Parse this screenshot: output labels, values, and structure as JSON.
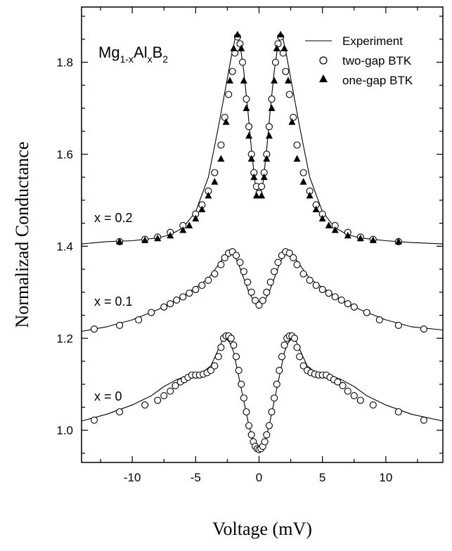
{
  "chart_data": {
    "type": "line",
    "title": "",
    "formula": {
      "main1": "Mg",
      "sub1": "1-x",
      "main2": "Al",
      "sub2": "x",
      "main3": "B",
      "sub3": "2"
    },
    "xlabel": "Voltage (mV)",
    "ylabel": "Normalizad Conductance",
    "xlim": [
      -14,
      14.5
    ],
    "ylim": [
      0.93,
      1.92
    ],
    "x_ticks": [
      -10,
      -5,
      0,
      5,
      10
    ],
    "y_ticks": [
      1.0,
      1.2,
      1.4,
      1.6,
      1.8
    ],
    "y_tick_labels": [
      "1.0",
      "1.2",
      "1.4",
      "1.6",
      "1.8"
    ],
    "grid": false,
    "legend_position": "top-right",
    "legend": [
      {
        "key": "line",
        "label": "Experiment"
      },
      {
        "key": "circle",
        "label": "two-gap BTK"
      },
      {
        "key": "triangle",
        "label": "one-gap BTK"
      }
    ],
    "series_labels": [
      {
        "text": "x = 0.2",
        "x": -11.5,
        "y": 1.42
      },
      {
        "text": "x = 0.1",
        "x": -11.5,
        "y": 1.237
      },
      {
        "text": "x = 0",
        "x": -11.5,
        "y": 1.07
      }
    ],
    "series": [
      {
        "name": "x = 0.2",
        "role": "experiment",
        "x": [
          -14,
          -12,
          -10,
          -8,
          -7,
          -6,
          -5,
          -4,
          -3.2,
          -2.6,
          -2.2,
          -1.9,
          -1.7,
          -1.5,
          -1.2,
          -0.9,
          -0.6,
          -0.3,
          0,
          0.3,
          0.6,
          0.9,
          1.2,
          1.5,
          1.7,
          1.9,
          2.2,
          2.6,
          3.2,
          4,
          5,
          6,
          7,
          8,
          10,
          12,
          14.5
        ],
        "y": [
          1.405,
          1.41,
          1.412,
          1.418,
          1.425,
          1.44,
          1.475,
          1.55,
          1.66,
          1.75,
          1.81,
          1.85,
          1.855,
          1.84,
          1.78,
          1.7,
          1.61,
          1.535,
          1.505,
          1.535,
          1.61,
          1.7,
          1.78,
          1.84,
          1.855,
          1.85,
          1.81,
          1.75,
          1.66,
          1.55,
          1.475,
          1.44,
          1.425,
          1.418,
          1.412,
          1.408,
          1.405
        ]
      },
      {
        "name": "x = 0.2",
        "role": "two-gap BTK",
        "x": [
          -11,
          -9,
          -8,
          -7,
          -6,
          -5,
          -4.5,
          -4,
          -3.5,
          -3,
          -2.7,
          -2.4,
          -2.1,
          -1.9,
          -1.7,
          -1.5,
          -1.3,
          -1.0,
          -0.8,
          -0.6,
          -0.4,
          -0.2,
          0,
          0.2,
          0.4,
          0.6,
          0.8,
          1.0,
          1.3,
          1.5,
          1.7,
          1.9,
          2.1,
          2.4,
          2.7,
          3,
          3.5,
          4,
          4.5,
          5,
          6,
          7,
          8,
          9,
          11
        ],
        "y": [
          1.41,
          1.415,
          1.42,
          1.43,
          1.445,
          1.47,
          1.49,
          1.52,
          1.56,
          1.62,
          1.68,
          1.73,
          1.78,
          1.82,
          1.855,
          1.84,
          1.8,
          1.72,
          1.66,
          1.6,
          1.56,
          1.53,
          1.515,
          1.53,
          1.56,
          1.6,
          1.66,
          1.72,
          1.8,
          1.84,
          1.855,
          1.82,
          1.78,
          1.73,
          1.68,
          1.62,
          1.56,
          1.52,
          1.49,
          1.47,
          1.445,
          1.43,
          1.42,
          1.415,
          1.41
        ]
      },
      {
        "name": "x = 0.2",
        "role": "one-gap BTK",
        "x": [
          -11,
          -9,
          -8,
          -7,
          -6,
          -5.5,
          -5,
          -4.5,
          -4,
          -3.5,
          -3,
          -2.6,
          -2.3,
          -2.0,
          -1.7,
          -1.4,
          -1.2,
          -1.0,
          -0.8,
          -0.6,
          -0.4,
          -0.2,
          0.2,
          0.4,
          0.6,
          0.8,
          1.0,
          1.2,
          1.4,
          1.7,
          2.0,
          2.3,
          2.6,
          3,
          3.5,
          4,
          4.5,
          5,
          5.5,
          6,
          7,
          8,
          9,
          11
        ],
        "y": [
          1.41,
          1.413,
          1.417,
          1.423,
          1.435,
          1.445,
          1.46,
          1.48,
          1.51,
          1.54,
          1.59,
          1.67,
          1.76,
          1.83,
          1.86,
          1.83,
          1.76,
          1.7,
          1.64,
          1.59,
          1.55,
          1.51,
          1.51,
          1.55,
          1.59,
          1.64,
          1.7,
          1.76,
          1.83,
          1.86,
          1.83,
          1.76,
          1.67,
          1.59,
          1.54,
          1.51,
          1.48,
          1.46,
          1.445,
          1.435,
          1.423,
          1.417,
          1.413,
          1.41
        ]
      },
      {
        "name": "x = 0.1",
        "role": "experiment",
        "x": [
          -14,
          -12,
          -10,
          -8,
          -7,
          -6,
          -5,
          -4,
          -3.2,
          -2.7,
          -2.3,
          -2.0,
          -1.6,
          -1.2,
          -0.8,
          -0.4,
          0,
          0.4,
          0.8,
          1.2,
          1.6,
          2.0,
          2.3,
          2.7,
          3.2,
          4,
          5,
          6,
          7,
          8,
          10,
          12,
          14.5
        ],
        "y": [
          1.215,
          1.225,
          1.24,
          1.262,
          1.276,
          1.292,
          1.31,
          1.33,
          1.36,
          1.38,
          1.39,
          1.385,
          1.36,
          1.33,
          1.3,
          1.28,
          1.27,
          1.28,
          1.3,
          1.33,
          1.36,
          1.385,
          1.39,
          1.38,
          1.36,
          1.33,
          1.31,
          1.292,
          1.276,
          1.262,
          1.24,
          1.225,
          1.218
        ]
      },
      {
        "name": "x = 0.1",
        "role": "two-gap BTK",
        "x": [
          -13,
          -11,
          -9.5,
          -8.5,
          -7.5,
          -7,
          -6.5,
          -6,
          -5.5,
          -5,
          -4.5,
          -4,
          -3.5,
          -3,
          -2.7,
          -2.4,
          -2.1,
          -1.8,
          -1.5,
          -1.2,
          -0.9,
          -0.6,
          -0.3,
          0,
          0.3,
          0.6,
          0.9,
          1.2,
          1.5,
          1.8,
          2.1,
          2.4,
          2.7,
          3,
          3.5,
          4,
          4.5,
          5,
          5.5,
          6,
          6.5,
          7,
          7.5,
          8.5,
          9.5,
          11,
          13
        ],
        "y": [
          1.22,
          1.228,
          1.24,
          1.256,
          1.268,
          1.275,
          1.283,
          1.29,
          1.298,
          1.306,
          1.315,
          1.326,
          1.34,
          1.36,
          1.375,
          1.385,
          1.388,
          1.38,
          1.365,
          1.345,
          1.322,
          1.3,
          1.282,
          1.272,
          1.282,
          1.3,
          1.322,
          1.345,
          1.365,
          1.38,
          1.388,
          1.385,
          1.375,
          1.36,
          1.34,
          1.326,
          1.315,
          1.306,
          1.298,
          1.29,
          1.283,
          1.275,
          1.268,
          1.256,
          1.24,
          1.228,
          1.22
        ]
      },
      {
        "name": "x = 0",
        "role": "experiment",
        "x": [
          -14,
          -12,
          -10,
          -8.5,
          -7.5,
          -6.5,
          -5.5,
          -4.5,
          -3.8,
          -3.3,
          -2.9,
          -2.6,
          -2.3,
          -2.0,
          -1.7,
          -1.4,
          -1.1,
          -0.8,
          -0.5,
          -0.25,
          0,
          0.25,
          0.5,
          0.8,
          1.1,
          1.4,
          1.7,
          2.0,
          2.3,
          2.6,
          2.9,
          3.3,
          3.8,
          4.5,
          5.5,
          6.5,
          7.5,
          8.5,
          10,
          12,
          14.5
        ],
        "y": [
          1.02,
          1.035,
          1.055,
          1.075,
          1.095,
          1.11,
          1.12,
          1.125,
          1.14,
          1.17,
          1.195,
          1.2,
          1.19,
          1.17,
          1.13,
          1.09,
          1.05,
          1.01,
          0.98,
          0.965,
          0.958,
          0.965,
          0.98,
          1.01,
          1.05,
          1.09,
          1.13,
          1.17,
          1.19,
          1.2,
          1.195,
          1.17,
          1.14,
          1.125,
          1.12,
          1.11,
          1.095,
          1.075,
          1.055,
          1.035,
          1.02
        ]
      },
      {
        "name": "x = 0",
        "role": "two-gap BTK",
        "x": [
          -13,
          -11,
          -9,
          -8,
          -7.5,
          -7,
          -6.6,
          -6.2,
          -5.9,
          -5.6,
          -5.3,
          -5,
          -4.7,
          -4.4,
          -4.1,
          -3.8,
          -3.5,
          -3.2,
          -3,
          -2.8,
          -2.6,
          -2.4,
          -2.2,
          -2.0,
          -1.8,
          -1.6,
          -1.4,
          -1.2,
          -1.0,
          -0.8,
          -0.6,
          -0.45,
          -0.3,
          -0.15,
          0,
          0.15,
          0.3,
          0.45,
          0.6,
          0.8,
          1.0,
          1.2,
          1.4,
          1.6,
          1.8,
          2.0,
          2.2,
          2.4,
          2.6,
          2.8,
          3,
          3.2,
          3.5,
          3.8,
          4.1,
          4.4,
          4.7,
          5,
          5.3,
          5.6,
          5.9,
          6.2,
          6.6,
          7,
          7.5,
          8,
          9,
          11,
          13
        ],
        "y": [
          1.022,
          1.04,
          1.055,
          1.065,
          1.075,
          1.085,
          1.097,
          1.105,
          1.11,
          1.115,
          1.12,
          1.12,
          1.12,
          1.122,
          1.125,
          1.13,
          1.14,
          1.16,
          1.18,
          1.2,
          1.205,
          1.205,
          1.2,
          1.185,
          1.16,
          1.13,
          1.1,
          1.07,
          1.04,
          1.01,
          0.99,
          0.975,
          0.965,
          0.96,
          0.958,
          0.96,
          0.965,
          0.975,
          0.99,
          1.01,
          1.04,
          1.07,
          1.1,
          1.13,
          1.16,
          1.185,
          1.2,
          1.205,
          1.205,
          1.2,
          1.18,
          1.16,
          1.14,
          1.13,
          1.125,
          1.122,
          1.12,
          1.12,
          1.12,
          1.115,
          1.11,
          1.105,
          1.097,
          1.085,
          1.075,
          1.065,
          1.055,
          1.04,
          1.022
        ]
      }
    ]
  }
}
